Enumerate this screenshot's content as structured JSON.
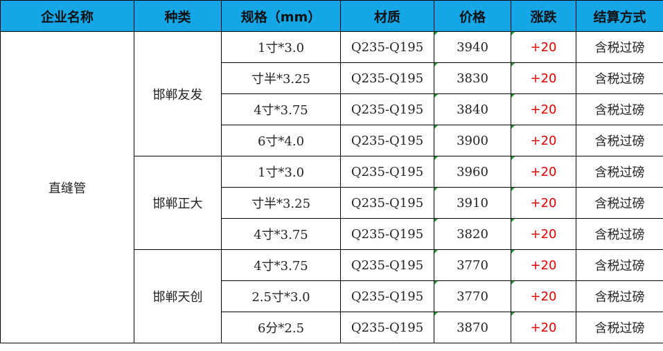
{
  "headers": [
    "企业名称",
    "种类",
    "规格（mm）",
    "材质",
    "价格",
    "涨跌",
    "结算方式"
  ],
  "category": "直缝管",
  "groups": [
    {
      "name": "邯郸友发",
      "rows": [
        {
          "spec": "1寸*3.0",
          "material": "Q235-Q195",
          "price": "3940",
          "change": "+20",
          "settlement": "含税过磅"
        },
        {
          "spec": "寸半*3.25",
          "material": "Q235-Q195",
          "price": "3830",
          "change": "+20",
          "settlement": "含税过磅"
        },
        {
          "spec": "4寸*3.75",
          "material": "Q235-Q195",
          "price": "3840",
          "change": "+20",
          "settlement": "含税过磅"
        },
        {
          "spec": "6寸*4.0",
          "material": "Q235-Q195",
          "price": "3900",
          "change": "+20",
          "settlement": "含税过磅"
        }
      ]
    },
    {
      "name": "邯郸正大",
      "rows": [
        {
          "spec": "1寸*3.0",
          "material": "Q235-Q195",
          "price": "3960",
          "change": "+20",
          "settlement": "含税过磅"
        },
        {
          "spec": "寸半*3.25",
          "material": "Q235-Q195",
          "price": "3910",
          "change": "+20",
          "settlement": "含税过磅"
        },
        {
          "spec": "4寸*3.75",
          "material": "Q235-Q195",
          "price": "3820",
          "change": "+20",
          "settlement": "含税过磅"
        }
      ]
    },
    {
      "name": "邯郸天创",
      "rows": [
        {
          "spec": "4寸*3.75",
          "material": "Q235-Q195",
          "price": "3770",
          "change": "+20",
          "settlement": "含税过磅"
        },
        {
          "spec": "2.5寸*3.0",
          "material": "Q235-Q195",
          "price": "3770",
          "change": "+20",
          "settlement": "含税过磅"
        },
        {
          "spec": "6分*2.5",
          "material": "Q235-Q195",
          "price": "3870",
          "change": "+20",
          "settlement": "含税过磅"
        }
      ]
    }
  ],
  "colors": {
    "header_bg": "#14a6e6",
    "change": "#e00000"
  }
}
